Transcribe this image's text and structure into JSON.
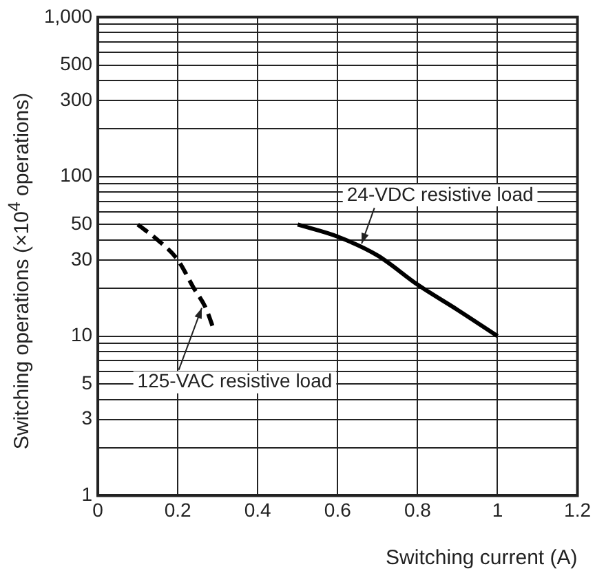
{
  "chart_data": {
    "type": "line",
    "xlabel": "Switching current (A)",
    "ylabel": "Switching operations (×10$^{4}$ operations)",
    "log": "y",
    "grid": true,
    "legend": false,
    "marker": "none",
    "xlim": [
      0,
      1.2
    ],
    "xticks": [
      0,
      0.2,
      0.4,
      0.6,
      0.8,
      1,
      1.2
    ],
    "ylim": [
      1,
      1000
    ],
    "yticks": [
      1,
      {
        "value": 2,
        "label": null
      },
      3,
      {
        "value": 4,
        "label": null
      },
      5,
      {
        "value": 6,
        "label": null
      },
      {
        "value": 7,
        "label": null
      },
      {
        "value": 8,
        "label": null
      },
      {
        "value": 9,
        "label": null
      },
      10,
      {
        "value": 20,
        "label": null
      },
      30,
      {
        "value": 40,
        "label": null
      },
      50,
      {
        "value": 60,
        "label": null
      },
      {
        "value": 70,
        "label": null
      },
      {
        "value": 80,
        "label": null
      },
      {
        "value": 90,
        "label": null
      },
      100,
      {
        "value": 200,
        "label": null
      },
      300,
      {
        "value": 400,
        "label": null
      },
      500,
      {
        "value": 600,
        "label": null
      },
      {
        "value": 700,
        "label": null
      },
      {
        "value": 800,
        "label": null
      },
      {
        "value": 900,
        "label": null
      },
      {
        "value": 1000,
        "label": "1,000"
      }
    ],
    "series": [
      {
        "color": "#000000",
        "line_style": "solid",
        "x": [
          0.5,
          0.6,
          0.7,
          0.8,
          0.9,
          1
        ],
        "values": [
          50,
          42,
          32,
          21,
          14.6,
          10
        ]
      },
      {
        "color": "#000000",
        "line_style": "dashed",
        "x": [
          0.1,
          0.15,
          0.2,
          0.24,
          0.27,
          0.29
        ],
        "values": [
          50,
          40,
          30,
          20,
          15,
          11
        ]
      }
    ],
    "annotations": [
      {
        "text": "24-VDC resistive load",
        "x": 0.66,
        "y": 38
      },
      {
        "text": "125-VAC resistive load",
        "x": 0.26,
        "y": 15
      }
    ]
  }
}
